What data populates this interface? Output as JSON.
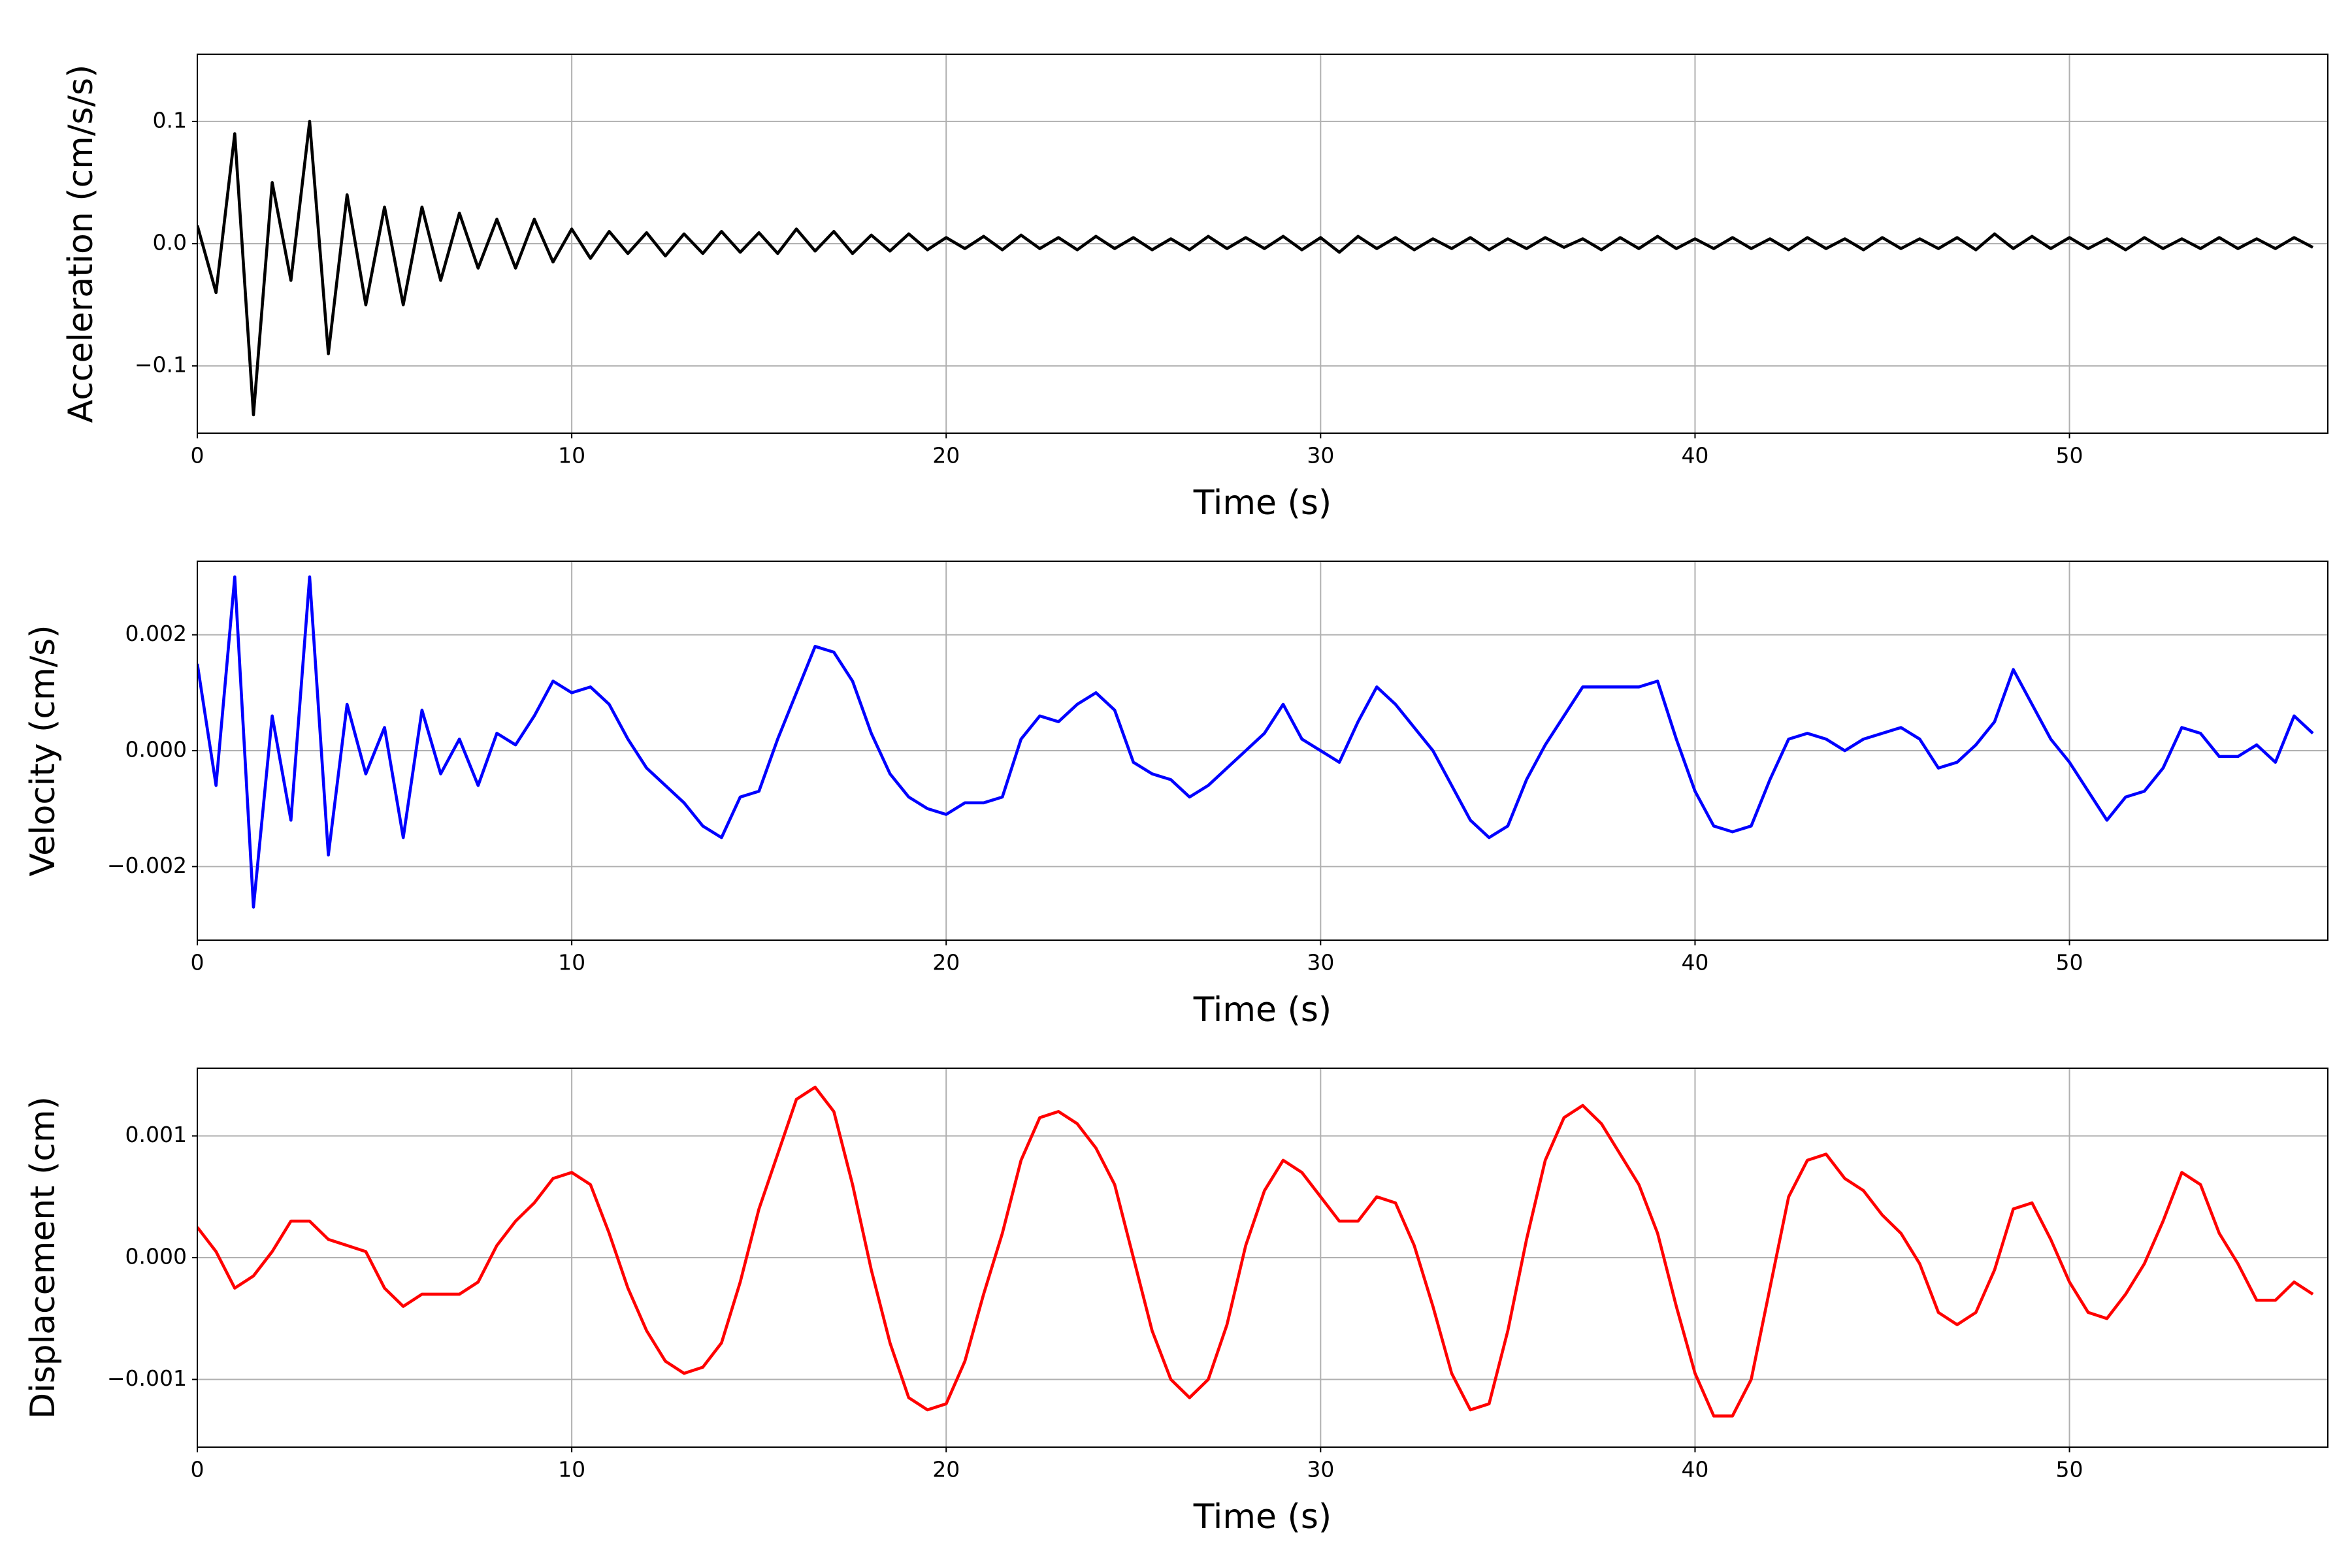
{
  "chart_data": [
    {
      "type": "line",
      "xlabel": "Time (s)",
      "ylabel": "Acceleration (cm/s/s)",
      "color": "#000000",
      "grid": true,
      "xlim": [
        0,
        56.9
      ],
      "xticks": [
        0,
        10,
        20,
        30,
        40,
        50
      ],
      "ylim": [
        -0.155,
        0.155
      ],
      "yticks": [
        {
          "value": -0.1,
          "label": "−0.1"
        },
        {
          "value": 0,
          "label": "0.0"
        },
        {
          "value": 0.1,
          "label": "0.1"
        }
      ],
      "x": [
        0,
        0.5,
        1,
        1.5,
        2,
        2.5,
        3,
        3.5,
        4,
        4.5,
        5,
        5.5,
        6,
        6.5,
        7,
        7.5,
        8,
        8.5,
        9,
        9.5,
        10,
        10.5,
        11,
        11.5,
        12,
        12.5,
        13,
        13.5,
        14,
        14.5,
        15,
        15.5,
        16,
        16.5,
        17,
        17.5,
        18,
        18.5,
        19,
        19.5,
        20,
        20.5,
        21,
        21.5,
        22,
        22.5,
        23,
        23.5,
        24,
        24.5,
        25,
        25.5,
        26,
        26.5,
        27,
        27.5,
        28,
        28.5,
        29,
        29.5,
        30,
        30.5,
        31,
        31.5,
        32,
        32.5,
        33,
        33.5,
        34,
        34.5,
        35,
        35.5,
        36,
        36.5,
        37,
        37.5,
        38,
        38.5,
        39,
        39.5,
        40,
        40.5,
        41,
        41.5,
        42,
        42.5,
        43,
        43.5,
        44,
        44.5,
        45,
        45.5,
        46,
        46.5,
        47,
        47.5,
        48,
        48.5,
        49,
        49.5,
        50,
        50.5,
        51,
        51.5,
        52,
        52.5,
        53,
        53.5,
        54,
        54.5,
        55,
        55.5,
        56,
        56.5
      ],
      "values": [
        0.015,
        -0.04,
        0.09,
        -0.14,
        0.05,
        -0.03,
        0.1,
        -0.09,
        0.04,
        -0.05,
        0.03,
        -0.05,
        0.03,
        -0.03,
        0.025,
        -0.02,
        0.02,
        -0.02,
        0.02,
        -0.015,
        0.012,
        -0.012,
        0.01,
        -0.008,
        0.009,
        -0.01,
        0.008,
        -0.008,
        0.01,
        -0.007,
        0.009,
        -0.008,
        0.012,
        -0.006,
        0.01,
        -0.008,
        0.007,
        -0.006,
        0.008,
        -0.005,
        0.005,
        -0.004,
        0.006,
        -0.005,
        0.007,
        -0.004,
        0.005,
        -0.005,
        0.006,
        -0.004,
        0.005,
        -0.005,
        0.004,
        -0.005,
        0.006,
        -0.004,
        0.005,
        -0.004,
        0.006,
        -0.005,
        0.005,
        -0.007,
        0.006,
        -0.004,
        0.005,
        -0.005,
        0.004,
        -0.004,
        0.005,
        -0.005,
        0.004,
        -0.004,
        0.005,
        -0.003,
        0.004,
        -0.005,
        0.005,
        -0.004,
        0.006,
        -0.004,
        0.004,
        -0.004,
        0.005,
        -0.004,
        0.004,
        -0.005,
        0.005,
        -0.004,
        0.004,
        -0.005,
        0.005,
        -0.004,
        0.004,
        -0.004,
        0.005,
        -0.005,
        0.008,
        -0.004,
        0.006,
        -0.004,
        0.005,
        -0.004,
        0.004,
        -0.005,
        0.005,
        -0.004,
        0.004,
        -0.004,
        0.005,
        -0.004,
        0.004,
        -0.004,
        0.005,
        -0.003
      ]
    },
    {
      "type": "line",
      "xlabel": "Time (s)",
      "ylabel": "Velocity (cm/s)",
      "color": "#0000ff",
      "grid": true,
      "xlim": [
        0,
        56.9
      ],
      "xticks": [
        0,
        10,
        20,
        30,
        40,
        50
      ],
      "ylim": [
        -0.00327,
        0.00327
      ],
      "yticks": [
        {
          "value": -0.002,
          "label": "−0.002"
        },
        {
          "value": 0,
          "label": "0.000"
        },
        0.002
      ],
      "x": [
        0,
        0.5,
        1,
        1.5,
        2,
        2.5,
        3,
        3.5,
        4,
        4.5,
        5,
        5.5,
        6,
        6.5,
        7,
        7.5,
        8,
        8.5,
        9,
        9.5,
        10,
        10.5,
        11,
        11.5,
        12,
        12.5,
        13,
        13.5,
        14,
        14.5,
        15,
        15.5,
        16,
        16.5,
        17,
        17.5,
        18,
        18.5,
        19,
        19.5,
        20,
        20.5,
        21,
        21.5,
        22,
        22.5,
        23,
        23.5,
        24,
        24.5,
        25,
        25.5,
        26,
        26.5,
        27,
        27.5,
        28,
        28.5,
        29,
        29.5,
        30,
        30.5,
        31,
        31.5,
        32,
        32.5,
        33,
        33.5,
        34,
        34.5,
        35,
        35.5,
        36,
        36.5,
        37,
        37.5,
        38,
        38.5,
        39,
        39.5,
        40,
        40.5,
        41,
        41.5,
        42,
        42.5,
        43,
        43.5,
        44,
        44.5,
        45,
        45.5,
        46,
        46.5,
        47,
        47.5,
        48,
        48.5,
        49,
        49.5,
        50,
        50.5,
        51,
        51.5,
        52,
        52.5,
        53,
        53.5,
        54,
        54.5,
        55,
        55.5,
        56,
        56.5
      ],
      "values": [
        0.0015,
        -0.0006,
        0.003,
        -0.0027,
        0.0006,
        -0.0012,
        0.003,
        -0.0018,
        0.0008,
        -0.0004,
        0.0004,
        -0.0015,
        0.0007,
        -0.0004,
        0.0002,
        -0.0006,
        0.0003,
        0.0001,
        0.0006,
        0.0012,
        0.001,
        0.0011,
        0.0008,
        0.0002,
        -0.0003,
        -0.0006,
        -0.0009,
        -0.0013,
        -0.0015,
        -0.0008,
        -0.0007,
        0.0002,
        0.001,
        0.0018,
        0.0017,
        0.0012,
        0.0003,
        -0.0004,
        -0.0008,
        -0.001,
        -0.0011,
        -0.0009,
        -0.0009,
        -0.0008,
        0.0002,
        0.0006,
        0.0005,
        0.0008,
        0.001,
        0.0007,
        -0.0002,
        -0.0004,
        -0.0005,
        -0.0008,
        -0.0006,
        -0.0003,
        0,
        0.0003,
        0.0008,
        0.0002,
        0,
        -0.0002,
        0.0005,
        0.0011,
        0.0008,
        0.0004,
        0,
        -0.0006,
        -0.0012,
        -0.0015,
        -0.0013,
        -0.0005,
        0.0001,
        0.0006,
        0.0011,
        0.0011,
        0.0011,
        0.0011,
        0.0012,
        0.0002,
        -0.0007,
        -0.0013,
        -0.0014,
        -0.0013,
        -0.0005,
        0.0002,
        0.0003,
        0.0002,
        0,
        0.0002,
        0.0003,
        0.0004,
        0.0002,
        -0.0003,
        -0.0002,
        0.0001,
        0.0005,
        0.0014,
        0.0008,
        0.0002,
        -0.0002,
        -0.0007,
        -0.0012,
        -0.0008,
        -0.0007,
        -0.0003,
        0.0004,
        0.0003,
        -0.0001,
        -0.0001,
        0.0001,
        -0.0002,
        0.0006,
        0.0003
      ]
    },
    {
      "type": "line",
      "xlabel": "Time (s)",
      "ylabel": "Displacement (cm)",
      "color": "#ff0000",
      "grid": true,
      "xlim": [
        0,
        56.9
      ],
      "xticks": [
        0,
        10,
        20,
        30,
        40,
        50
      ],
      "ylim": [
        -0.001556,
        0.001556
      ],
      "yticks": [
        {
          "value": -0.001,
          "label": "−0.001"
        },
        {
          "value": 0,
          "label": "0.000"
        },
        0.001
      ],
      "x": [
        0,
        0.5,
        1,
        1.5,
        2,
        2.5,
        3,
        3.5,
        4,
        4.5,
        5,
        5.5,
        6,
        6.5,
        7,
        7.5,
        8,
        8.5,
        9,
        9.5,
        10,
        10.5,
        11,
        11.5,
        12,
        12.5,
        13,
        13.5,
        14,
        14.5,
        15,
        15.5,
        16,
        16.5,
        17,
        17.5,
        18,
        18.5,
        19,
        19.5,
        20,
        20.5,
        21,
        21.5,
        22,
        22.5,
        23,
        23.5,
        24,
        24.5,
        25,
        25.5,
        26,
        26.5,
        27,
        27.5,
        28,
        28.5,
        29,
        29.5,
        30,
        30.5,
        31,
        31.5,
        32,
        32.5,
        33,
        33.5,
        34,
        34.5,
        35,
        35.5,
        36,
        36.5,
        37,
        37.5,
        38,
        38.5,
        39,
        39.5,
        40,
        40.5,
        41,
        41.5,
        42,
        42.5,
        43,
        43.5,
        44,
        44.5,
        45,
        45.5,
        46,
        46.5,
        47,
        47.5,
        48,
        48.5,
        49,
        49.5,
        50,
        50.5,
        51,
        51.5,
        52,
        52.5,
        53,
        53.5,
        54,
        54.5,
        55,
        55.5,
        56,
        56.5
      ],
      "values": [
        0.00025,
        5e-05,
        -0.00025,
        -0.00015,
        5e-05,
        0.0003,
        0.0003,
        0.00015,
        0.0001,
        5e-05,
        -0.00025,
        -0.0004,
        -0.0003,
        -0.0003,
        -0.0003,
        -0.0002,
        0.0001,
        0.0003,
        0.00045,
        0.00065,
        0.0007,
        0.0006,
        0.0002,
        -0.00025,
        -0.0006,
        -0.00085,
        -0.00095,
        -0.0009,
        -0.0007,
        -0.0002,
        0.0004,
        0.00085,
        0.0013,
        0.0014,
        0.0012,
        0.0006,
        -0.0001,
        -0.0007,
        -0.00115,
        -0.00125,
        -0.0012,
        -0.00085,
        -0.0003,
        0.0002,
        0.0008,
        0.00115,
        0.0012,
        0.0011,
        0.0009,
        0.0006,
        0,
        -0.0006,
        -0.001,
        -0.00115,
        -0.001,
        -0.00055,
        0.0001,
        0.00055,
        0.0008,
        0.0007,
        0.0005,
        0.0003,
        0.0003,
        0.0005,
        0.00045,
        0.0001,
        -0.0004,
        -0.00095,
        -0.00125,
        -0.0012,
        -0.0006,
        0.00015,
        0.0008,
        0.00115,
        0.00125,
        0.0011,
        0.00085,
        0.0006,
        0.0002,
        -0.0004,
        -0.00095,
        -0.0013,
        -0.0013,
        -0.001,
        -0.00025,
        0.0005,
        0.0008,
        0.00085,
        0.00065,
        0.00055,
        0.00035,
        0.0002,
        -5e-05,
        -0.00045,
        -0.00055,
        -0.00045,
        -0.0001,
        0.0004,
        0.00045,
        0.00015,
        -0.0002,
        -0.00045,
        -0.0005,
        -0.0003,
        -5e-05,
        0.0003,
        0.0007,
        0.0006,
        0.0002,
        -5e-05,
        -0.00035,
        -0.00035,
        -0.0002,
        -0.0003
      ]
    }
  ]
}
